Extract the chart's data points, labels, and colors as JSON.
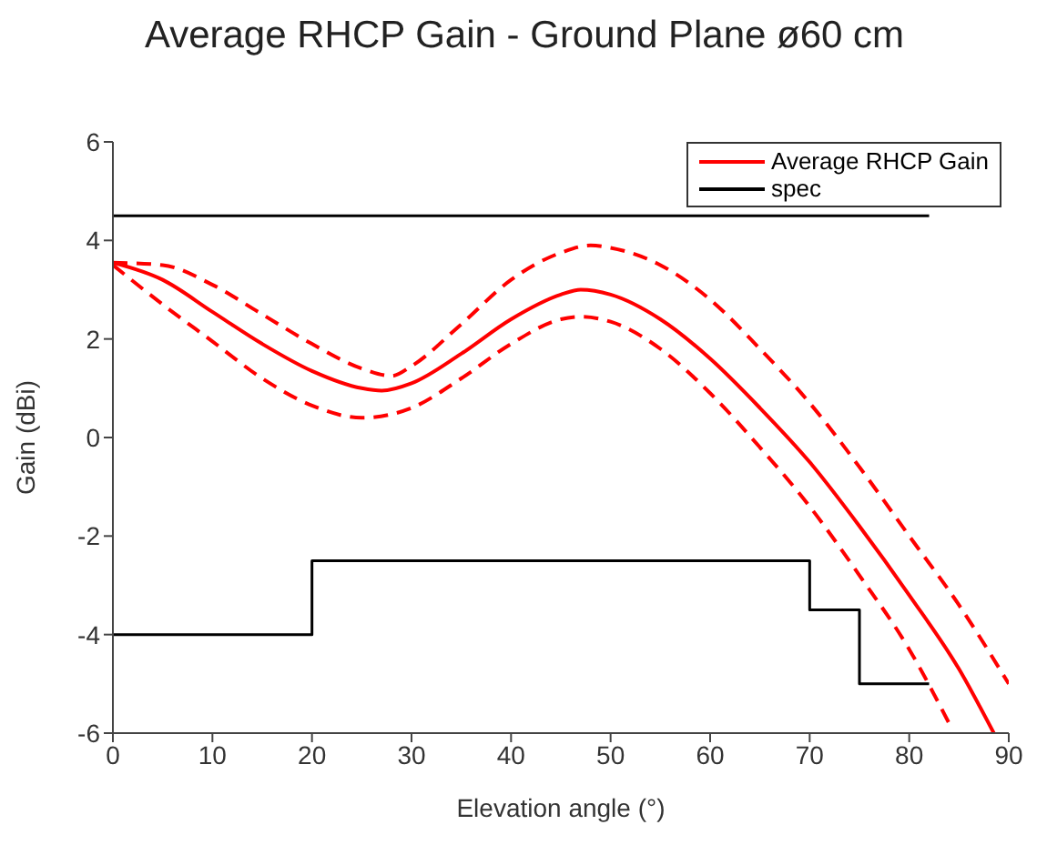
{
  "chart_data": {
    "type": "line",
    "title": "Average RHCP Gain - Ground Plane ø60 cm",
    "xlabel": "Elevation angle (°)",
    "ylabel": "Gain (dBi)",
    "xlim": [
      0,
      90
    ],
    "xticks": [
      0,
      10,
      20,
      30,
      40,
      50,
      60,
      70,
      80,
      90
    ],
    "ylim": [
      -6,
      6
    ],
    "yticks": [
      -6,
      -4,
      -2,
      0,
      2,
      4,
      6
    ],
    "legend": "top right",
    "marker": "none",
    "series": [
      {
        "name": "Average RHCP Gain",
        "color": "#ff0000",
        "line_style": "solid",
        "x": [
          0,
          5,
          10,
          15,
          20,
          25,
          27,
          30,
          35,
          40,
          45,
          47,
          50,
          55,
          60,
          65,
          70,
          75,
          80,
          85,
          88.5
        ],
        "values": [
          3.55,
          3.2,
          2.55,
          1.9,
          1.35,
          1.0,
          0.95,
          1.1,
          1.7,
          2.4,
          2.9,
          3.0,
          2.9,
          2.4,
          1.6,
          0.6,
          -0.5,
          -1.8,
          -3.2,
          -4.7,
          -6
        ]
      },
      {
        "color": "#ff0000",
        "line_style": "dashed",
        "x": [
          0,
          5,
          10,
          15,
          20,
          25,
          28,
          30,
          35,
          40,
          45,
          48,
          50,
          55,
          60,
          65,
          70,
          75,
          80,
          85,
          90
        ],
        "values": [
          3.55,
          3.5,
          3.1,
          2.5,
          1.9,
          1.4,
          1.25,
          1.45,
          2.3,
          3.2,
          3.75,
          3.9,
          3.85,
          3.5,
          2.8,
          1.8,
          0.7,
          -0.6,
          -2.0,
          -3.4,
          -5.0
        ]
      },
      {
        "color": "#ff0000",
        "line_style": "dashed",
        "x": [
          0,
          5,
          10,
          15,
          20,
          25,
          30,
          35,
          40,
          45,
          47,
          50,
          55,
          60,
          65,
          70,
          75,
          80,
          84
        ],
        "values": [
          3.5,
          2.7,
          1.95,
          1.2,
          0.65,
          0.4,
          0.6,
          1.2,
          1.9,
          2.4,
          2.45,
          2.35,
          1.8,
          0.9,
          -0.2,
          -1.4,
          -2.8,
          -4.3,
          -5.8
        ]
      },
      {
        "name": "spec",
        "type": "step",
        "color": "#000000",
        "line_style": "solid",
        "x": [
          0,
          20,
          70,
          75,
          82
        ],
        "values": [
          -4,
          -2.5,
          -3.5,
          -5,
          -5
        ]
      },
      {
        "color": "#000000",
        "line_style": "solid",
        "x": [
          0,
          82
        ],
        "values": [
          4.5,
          4.5
        ]
      }
    ]
  }
}
